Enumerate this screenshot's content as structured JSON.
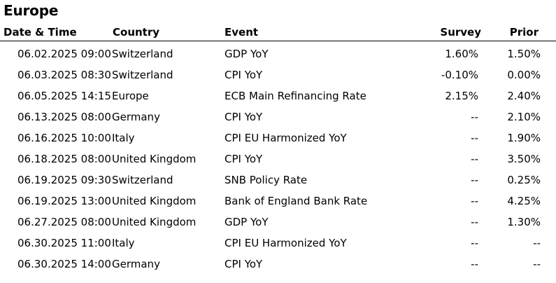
{
  "title": "Europe",
  "columns": {
    "date": "Date & Time",
    "country": "Country",
    "event": "Event",
    "survey": "Survey",
    "prior": "Prior"
  },
  "rows": [
    {
      "date": "06.02.2025 09:00",
      "country": "Switzerland",
      "event": "GDP YoY",
      "survey": "1.60%",
      "prior": "1.50%"
    },
    {
      "date": "06.03.2025 08:30",
      "country": "Switzerland",
      "event": "CPI YoY",
      "survey": "-0.10%",
      "prior": "0.00%"
    },
    {
      "date": "06.05.2025 14:15",
      "country": "Europe",
      "event": "ECB Main Refinancing Rate",
      "survey": "2.15%",
      "prior": "2.40%"
    },
    {
      "date": "06.13.2025 08:00",
      "country": "Germany",
      "event": "CPI YoY",
      "survey": "--",
      "prior": "2.10%"
    },
    {
      "date": "06.16.2025 10:00",
      "country": "Italy",
      "event": "CPI EU Harmonized YoY",
      "survey": "--",
      "prior": "1.90%"
    },
    {
      "date": "06.18.2025 08:00",
      "country": "United Kingdom",
      "event": "CPI YoY",
      "survey": "--",
      "prior": "3.50%"
    },
    {
      "date": "06.19.2025 09:30",
      "country": "Switzerland",
      "event": "SNB Policy Rate",
      "survey": "--",
      "prior": "0.25%"
    },
    {
      "date": "06.19.2025 13:00",
      "country": "United Kingdom",
      "event": "Bank of England Bank Rate",
      "survey": "--",
      "prior": "4.25%"
    },
    {
      "date": "06.27.2025 08:00",
      "country": "United Kingdom",
      "event": "GDP YoY",
      "survey": "--",
      "prior": "1.30%"
    },
    {
      "date": "06.30.2025 11:00",
      "country": "Italy",
      "event": "CPI EU Harmonized YoY",
      "survey": "--",
      "prior": "--"
    },
    {
      "date": "06.30.2025 14:00",
      "country": "Germany",
      "event": "CPI YoY",
      "survey": "--",
      "prior": "--"
    }
  ]
}
